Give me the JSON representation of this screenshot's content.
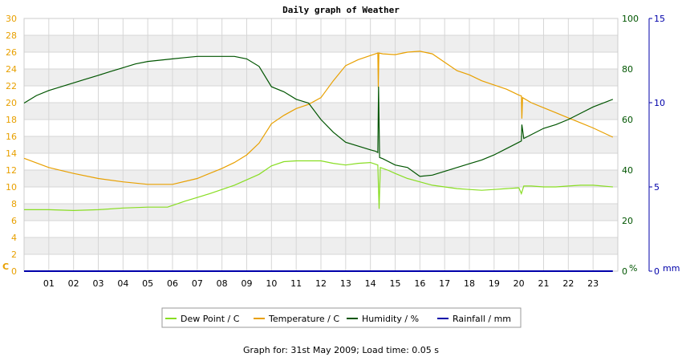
{
  "chart_data": {
    "type": "line",
    "title": "Daily graph of Weather",
    "x_ticks": [
      "01",
      "02",
      "03",
      "04",
      "05",
      "06",
      "07",
      "08",
      "09",
      "10",
      "11",
      "12",
      "13",
      "14",
      "15",
      "16",
      "17",
      "18",
      "19",
      "20",
      "21",
      "22",
      "23"
    ],
    "xlim": [
      0,
      24
    ],
    "axes": {
      "left": {
        "label": "C",
        "ticks": [
          0,
          2,
          4,
          6,
          8,
          10,
          12,
          14,
          16,
          18,
          20,
          22,
          24,
          26,
          28,
          30
        ],
        "ylim": [
          0,
          30
        ],
        "color": "#e8a000"
      },
      "humidity": {
        "label": "%",
        "ticks": [
          0,
          20,
          40,
          60,
          80,
          100
        ],
        "ylim": [
          0,
          100
        ],
        "color": "#005500"
      },
      "rain": {
        "label": "mm",
        "ticks": [
          0,
          5,
          10,
          15
        ],
        "ylim": [
          0,
          15
        ],
        "color": "#0000aa"
      }
    },
    "series": [
      {
        "name": "Dew Point / C",
        "axis": "left",
        "color": "#88dd22",
        "x": [
          0,
          1,
          2,
          3,
          4,
          5,
          5.8,
          6.5,
          7.5,
          8.5,
          9.5,
          10,
          10.5,
          11,
          11.5,
          12,
          12.5,
          13,
          13.5,
          14,
          14.3,
          14.35,
          14.4,
          14.7,
          15,
          15.5,
          16,
          16.5,
          17,
          17.5,
          18,
          18.5,
          19,
          19.5,
          20,
          20.1,
          20.2,
          20.5,
          21,
          21.5,
          22,
          22.5,
          23,
          23.8
        ],
        "values": [
          7.3,
          7.3,
          7.2,
          7.3,
          7.5,
          7.6,
          7.6,
          8.3,
          9.2,
          10.2,
          11.5,
          12.5,
          13.0,
          13.1,
          13.1,
          13.1,
          12.8,
          12.6,
          12.8,
          12.9,
          12.6,
          7.4,
          12.3,
          12.0,
          11.6,
          11.0,
          10.6,
          10.2,
          10.0,
          9.8,
          9.7,
          9.6,
          9.7,
          9.8,
          9.9,
          9.2,
          10.1,
          10.1,
          10.0,
          10.0,
          10.1,
          10.2,
          10.2,
          10.0
        ]
      },
      {
        "name": "Temperature / C",
        "axis": "left",
        "color": "#e8a000",
        "x": [
          0,
          1,
          2,
          3,
          4,
          5,
          6,
          7,
          8,
          8.5,
          9,
          9.5,
          10,
          10.5,
          11,
          11.5,
          12,
          12.5,
          13,
          13.5,
          14,
          14.3,
          14.32,
          14.34,
          14.5,
          15,
          15.5,
          16,
          16.5,
          17,
          17.5,
          18,
          18.5,
          19,
          19.5,
          20,
          20.1,
          20.12,
          20.15,
          20.5,
          21,
          21.5,
          22,
          22.5,
          23,
          23.8
        ],
        "values": [
          13.4,
          12.3,
          11.6,
          11.0,
          10.6,
          10.3,
          10.3,
          11.0,
          12.2,
          12.9,
          13.8,
          15.2,
          17.5,
          18.5,
          19.3,
          19.8,
          20.6,
          22.6,
          24.4,
          25.1,
          25.6,
          25.9,
          21.8,
          25.9,
          25.8,
          25.7,
          26.0,
          26.1,
          25.8,
          24.8,
          23.8,
          23.3,
          22.6,
          22.1,
          21.6,
          20.9,
          20.8,
          18.1,
          20.6,
          20.0,
          19.4,
          18.8,
          18.2,
          17.6,
          17.0,
          15.9
        ]
      },
      {
        "name": "Humidity / %",
        "axis": "humidity",
        "color": "#005500",
        "x": [
          0,
          0.5,
          1,
          1.5,
          2,
          2.5,
          3,
          3.5,
          4,
          4.5,
          5,
          5.5,
          6,
          6.5,
          7,
          7.5,
          8,
          8.5,
          9,
          9.5,
          10,
          10.5,
          11,
          11.5,
          12,
          12.5,
          13,
          13.5,
          14,
          14.2,
          14.3,
          14.33,
          14.37,
          14.5,
          15,
          15.5,
          16,
          16.5,
          17,
          17.5,
          18,
          18.5,
          19,
          19.5,
          20,
          20.1,
          20.12,
          20.2,
          20.5,
          21,
          21.5,
          22,
          22.5,
          23,
          23.8
        ],
        "values": [
          66.5,
          69.5,
          71.5,
          73.0,
          74.5,
          76.0,
          77.5,
          79.0,
          80.5,
          82.0,
          83.0,
          83.5,
          84.0,
          84.5,
          85.0,
          85.0,
          85.0,
          85.0,
          84.0,
          81.0,
          73.0,
          71.0,
          68.0,
          66.5,
          60.0,
          55.0,
          51.0,
          49.5,
          48.0,
          47.5,
          47.0,
          73.0,
          45.0,
          44.5,
          42.0,
          41.0,
          37.5,
          38.0,
          39.5,
          41.0,
          42.5,
          44.0,
          46.0,
          48.5,
          51.0,
          51.5,
          58.0,
          52.5,
          54.0,
          56.5,
          58.0,
          60.0,
          62.5,
          65.0,
          68.0
        ]
      },
      {
        "name": "Rainfall / mm",
        "axis": "rain",
        "color": "#0000aa",
        "x": [
          0,
          23.8
        ],
        "values": [
          0,
          0
        ]
      }
    ],
    "grid": true,
    "legend": "bottom-center"
  },
  "footer": {
    "text": "Graph for: 31st May 2009; Load time: 0.05 s"
  }
}
